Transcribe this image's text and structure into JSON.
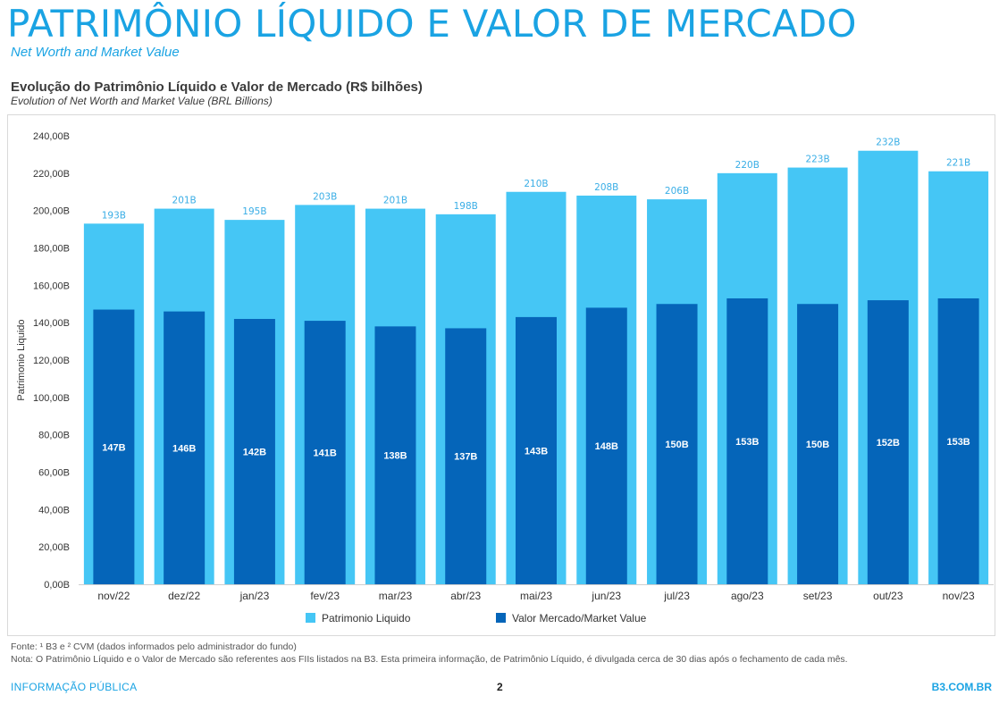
{
  "header": {
    "title": "PATRIMÔNIO LÍQUIDO E VALOR DE MERCADO",
    "subtitle": "Net Worth and Market Value"
  },
  "chart_heading": {
    "title": "Evolução do Patrimônio Líquido e Valor de Mercado (R$ bilhões)",
    "subtitle": "Evolution of Net Worth and Market Value (BRL Billions)"
  },
  "colors": {
    "net_worth": "#45c6f5",
    "market_value": "#0565b9",
    "accent": "#1aa3e3"
  },
  "chart_data": {
    "type": "bar",
    "categories": [
      "nov/22",
      "dez/22",
      "jan/23",
      "fev/23",
      "mar/23",
      "abr/23",
      "mai/23",
      "jun/23",
      "jul/23",
      "ago/23",
      "set/23",
      "out/23",
      "nov/23"
    ],
    "series": [
      {
        "name": "Patrimonio Liquido",
        "values": [
          193,
          201,
          195,
          203,
          201,
          198,
          210,
          208,
          206,
          220,
          223,
          232,
          221
        ],
        "labels": [
          "193B",
          "201B",
          "195B",
          "203B",
          "201B",
          "198B",
          "210B",
          "208B",
          "206B",
          "220B",
          "223B",
          "232B",
          "221B"
        ],
        "color": "#45c6f5"
      },
      {
        "name": "Valor Mercado/Market Value",
        "values": [
          147,
          146,
          142,
          141,
          138,
          137,
          143,
          148,
          150,
          153,
          150,
          152,
          153
        ],
        "labels": [
          "147B",
          "146B",
          "142B",
          "141B",
          "138B",
          "137B",
          "143B",
          "148B",
          "150B",
          "153B",
          "150B",
          "152B",
          "153B"
        ],
        "color": "#0565b9"
      }
    ],
    "ylabel": "Patrimonio Liquido",
    "ylim": [
      0,
      240
    ],
    "yticks": [
      0,
      20,
      40,
      60,
      80,
      100,
      120,
      140,
      160,
      180,
      200,
      220,
      240
    ],
    "ytick_labels": [
      "0,00B",
      "20,00B",
      "40,00B",
      "60,00B",
      "80,00B",
      "100,00B",
      "120,00B",
      "140,00B",
      "160,00B",
      "180,00B",
      "200,00B",
      "220,00B",
      "240,00B"
    ],
    "grid": false,
    "legend": "bottom"
  },
  "footnotes": {
    "source": "Fonte: ¹ B3 e ² CVM (dados informados pelo administrador do fundo)",
    "note": "Nota: O Patrimônio Líquido e o Valor de Mercado são referentes aos FIIs listados na B3. Esta primeira informação, de Patrimônio Líquido, é divulgada cerca de 30 dias após o fechamento de cada mês."
  },
  "footer": {
    "left": "INFORMAÇÃO PÚBLICA",
    "page": "2",
    "right": "B3.COM.BR"
  }
}
